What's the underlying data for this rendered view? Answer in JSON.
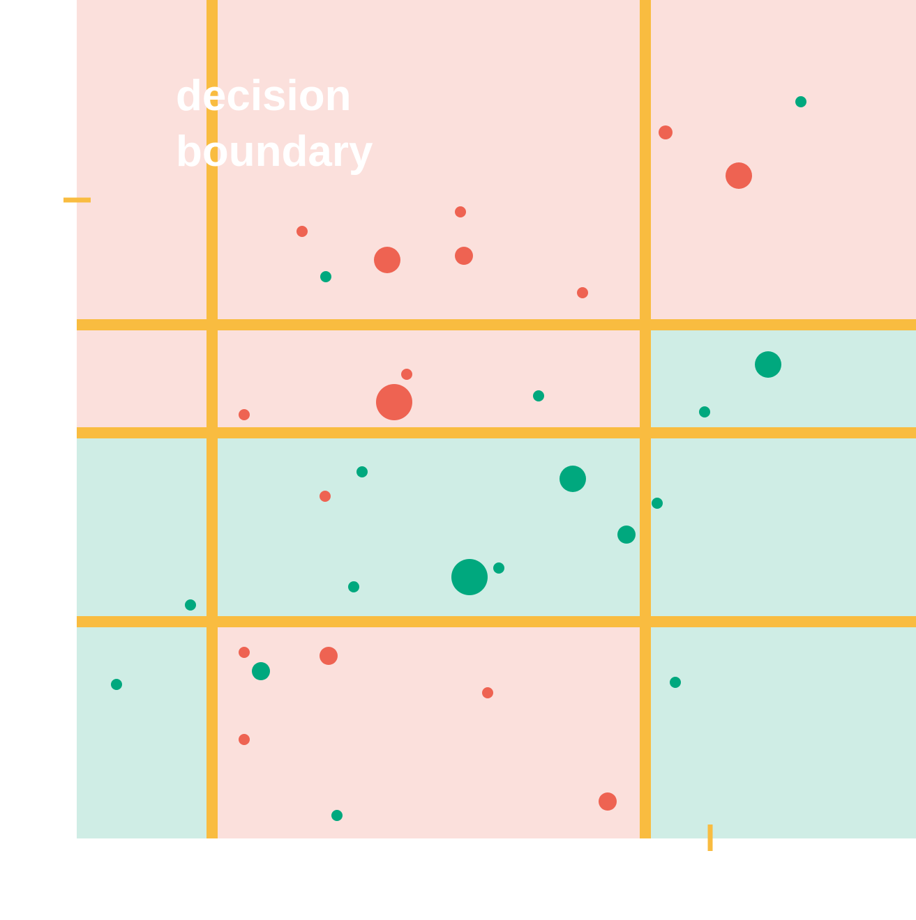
{
  "annotation": "decision boundary"
}
